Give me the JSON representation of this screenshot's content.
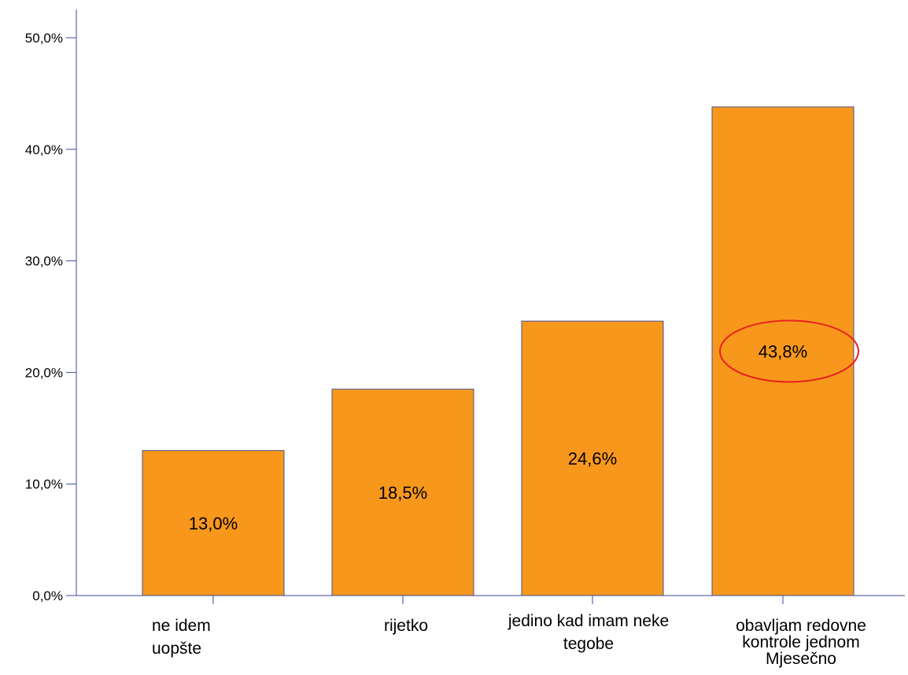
{
  "chart_data": {
    "type": "bar",
    "categories": [
      [
        "ne idem",
        "uopšte"
      ],
      [
        "rijetko"
      ],
      [
        "jedino kad imam neke",
        "tegobe"
      ],
      [
        "obavljam redovne",
        "kontrole jednom",
        "Mjesečno"
      ]
    ],
    "values": [
      13.0,
      18.5,
      24.6,
      43.8
    ],
    "data_labels": [
      "13,0%",
      "18,5%",
      "24,6%",
      "43,8%"
    ],
    "highlighted_index": 3,
    "ylim": [
      0,
      50
    ],
    "yticks": [
      0,
      10,
      20,
      30,
      40,
      50
    ],
    "ytick_labels": [
      "0,0%",
      "10,0%",
      "20,0%",
      "30,0%",
      "40,0%",
      "50,0%"
    ],
    "title": "",
    "xlabel": "",
    "ylabel": "",
    "grid": false,
    "colors": {
      "bar_fill": "#f7981d",
      "bar_stroke": "#4a4f8c",
      "axis": "#3c4a9c",
      "highlight": "#e8201c"
    }
  }
}
